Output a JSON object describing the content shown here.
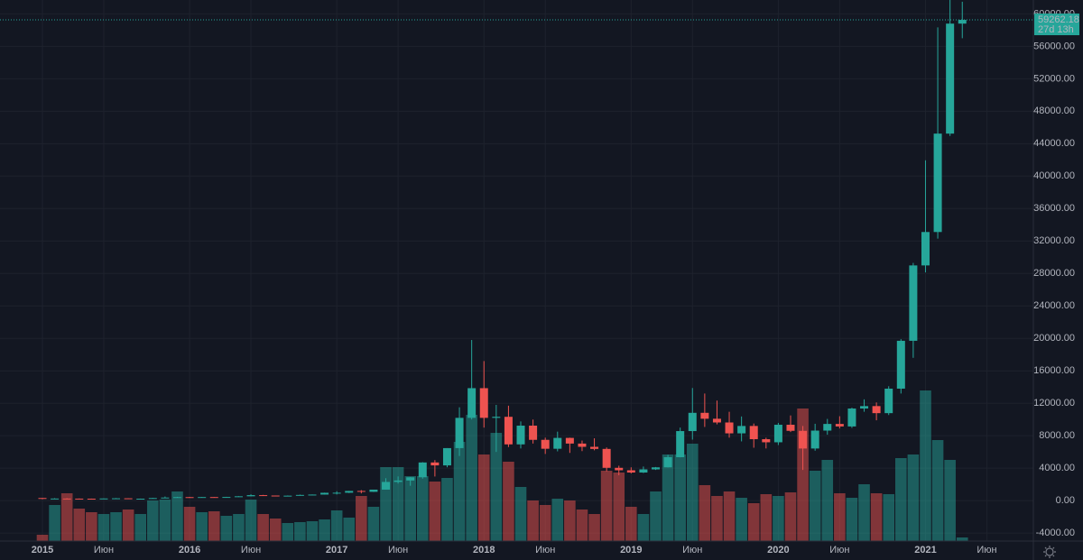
{
  "chart_data": {
    "type": "candlestick",
    "up_color": "#26a69a",
    "down_color": "#ef5350",
    "x": [
      "2015-01",
      "2015-02",
      "2015-03",
      "2015-04",
      "2015-05",
      "2015-06",
      "2015-07",
      "2015-08",
      "2015-09",
      "2015-10",
      "2015-11",
      "2015-12",
      "2016-01",
      "2016-02",
      "2016-03",
      "2016-04",
      "2016-05",
      "2016-06",
      "2016-07",
      "2016-08",
      "2016-09",
      "2016-10",
      "2016-11",
      "2016-12",
      "2017-01",
      "2017-02",
      "2017-03",
      "2017-04",
      "2017-05",
      "2017-06",
      "2017-07",
      "2017-08",
      "2017-09",
      "2017-10",
      "2017-11",
      "2017-12",
      "2018-01",
      "2018-02",
      "2018-03",
      "2018-04",
      "2018-05",
      "2018-06",
      "2018-07",
      "2018-08",
      "2018-09",
      "2018-10",
      "2018-11",
      "2018-12",
      "2019-01",
      "2019-02",
      "2019-03",
      "2019-04",
      "2019-05",
      "2019-06",
      "2019-07",
      "2019-08",
      "2019-09",
      "2019-10",
      "2019-11",
      "2019-12",
      "2020-01",
      "2020-02",
      "2020-03",
      "2020-04",
      "2020-05",
      "2020-06",
      "2020-07",
      "2020-08",
      "2020-09",
      "2020-10",
      "2020-11",
      "2020-12",
      "2021-01",
      "2021-02",
      "2021-03",
      "2021-04"
    ],
    "open": [
      320,
      217,
      254,
      244,
      236,
      230,
      263,
      284,
      230,
      236,
      314,
      377,
      430,
      368,
      437,
      416,
      448,
      531,
      673,
      624,
      575,
      609,
      700,
      743,
      963,
      970,
      1190,
      1080,
      1350,
      2300,
      2480,
      2875,
      4700,
      4340,
      6470,
      10200,
      13860,
      10200,
      10330,
      6930,
      9240,
      7490,
      6390,
      7730,
      7030,
      6630,
      6370,
      4040,
      3740,
      3460,
      3850,
      4100,
      5350,
      8570,
      10820,
      10090,
      9630,
      8290,
      9200,
      7570,
      7190,
      9350,
      8600,
      6420,
      8630,
      9450,
      9140,
      11350,
      11650,
      10780,
      13800,
      19700,
      28990,
      33110,
      45240,
      58800
    ],
    "high": [
      320,
      300,
      300,
      261,
      247,
      267,
      315,
      285,
      247,
      334,
      503,
      465,
      456,
      447,
      439,
      467,
      547,
      775,
      704,
      627,
      629,
      739,
      753,
      979,
      1155,
      1200,
      1290,
      1350,
      2760,
      2980,
      2900,
      4740,
      4990,
      6470,
      11500,
      19800,
      17200,
      11800,
      11700,
      9760,
      9990,
      7760,
      8500,
      7760,
      7400,
      7680,
      6550,
      4300,
      4100,
      4200,
      4140,
      5640,
      9000,
      13880,
      13200,
      12330,
      10950,
      10370,
      9500,
      7750,
      9580,
      10500,
      9200,
      9470,
      10070,
      10400,
      11450,
      12480,
      12100,
      14100,
      19900,
      29300,
      41950,
      58330,
      61800,
      61500
    ],
    "low": [
      170,
      212,
      236,
      214,
      225,
      220,
      253,
      199,
      225,
      236,
      311,
      350,
      350,
      366,
      395,
      415,
      444,
      527,
      605,
      540,
      570,
      604,
      683,
      742,
      755,
      932,
      890,
      1060,
      1350,
      2100,
      1830,
      2700,
      2970,
      4110,
      5500,
      10000,
      9000,
      6000,
      6600,
      6430,
      7030,
      5750,
      6070,
      5880,
      6100,
      6200,
      3600,
      3120,
      3350,
      3400,
      3780,
      4080,
      5330,
      7520,
      9080,
      9400,
      7760,
      7300,
      6520,
      6430,
      6850,
      8450,
      3780,
      6150,
      8120,
      8900,
      8960,
      10950,
      9900,
      10550,
      13200,
      17600,
      28130,
      32300,
      44950,
      57000
    ],
    "close": [
      217,
      254,
      244,
      236,
      230,
      263,
      284,
      230,
      236,
      314,
      377,
      430,
      368,
      437,
      416,
      448,
      531,
      673,
      624,
      575,
      609,
      700,
      743,
      963,
      970,
      1190,
      1080,
      1350,
      2300,
      2480,
      2875,
      4700,
      4340,
      6470,
      10200,
      13860,
      10200,
      10330,
      6930,
      9240,
      7490,
      6390,
      7730,
      7030,
      6630,
      6370,
      4040,
      3740,
      3460,
      3850,
      4100,
      5350,
      8570,
      10820,
      10090,
      9630,
      8290,
      9200,
      7570,
      7190,
      9350,
      8600,
      6420,
      8630,
      9450,
      9140,
      11350,
      11650,
      10780,
      13800,
      19700,
      28990,
      33110,
      45240,
      58800,
      59262.18
    ],
    "volume": [
      7,
      40,
      53,
      36,
      32,
      30,
      32,
      35,
      30,
      45,
      46,
      55,
      38,
      32,
      33,
      28,
      30,
      46,
      30,
      25,
      20,
      21,
      22,
      24,
      34,
      26,
      50,
      38,
      82,
      82,
      72,
      72,
      66,
      70,
      110,
      140,
      96,
      120,
      88,
      60,
      45,
      40,
      47,
      45,
      35,
      30,
      78,
      76,
      38,
      30,
      55,
      96,
      96,
      108,
      62,
      50,
      55,
      48,
      42,
      52,
      50,
      54,
      147,
      78,
      90,
      53,
      48,
      63,
      53,
      52,
      92,
      96,
      167,
      112,
      90,
      4
    ],
    "volume_lim": [
      0,
      600
    ],
    "ylim": [
      -6000,
      61200
    ],
    "yticks": [
      {
        "value": -4000,
        "label": "-4000.00"
      },
      {
        "value": 0,
        "label": "0.00"
      },
      {
        "value": 4000,
        "label": "4000.00"
      },
      {
        "value": 8000,
        "label": "8000.00"
      },
      {
        "value": 12000,
        "label": "12000.00"
      },
      {
        "value": 16000,
        "label": "16000.00"
      },
      {
        "value": 20000,
        "label": "20000.00"
      },
      {
        "value": 24000,
        "label": "24000.00"
      },
      {
        "value": 28000,
        "label": "28000.00"
      },
      {
        "value": 32000,
        "label": "32000.00"
      },
      {
        "value": 36000,
        "label": "36000.00"
      },
      {
        "value": 40000,
        "label": "40000.00"
      },
      {
        "value": 44000,
        "label": "44000.00"
      },
      {
        "value": 48000,
        "label": "48000.00"
      },
      {
        "value": 52000,
        "label": "52000.00"
      },
      {
        "value": 56000,
        "label": "56000.00"
      },
      {
        "value": 60000,
        "label": "60000.00"
      }
    ],
    "xticks": [
      {
        "value": "2015-01",
        "label": "2015"
      },
      {
        "value": "2015-06",
        "label": "Июн"
      },
      {
        "value": "2016-01",
        "label": "2016"
      },
      {
        "value": "2016-06",
        "label": "Июн"
      },
      {
        "value": "2017-01",
        "label": "2017"
      },
      {
        "value": "2017-06",
        "label": "Июн"
      },
      {
        "value": "2018-01",
        "label": "2018"
      },
      {
        "value": "2018-06",
        "label": "Июн"
      },
      {
        "value": "2019-01",
        "label": "2019"
      },
      {
        "value": "2019-06",
        "label": "Июн"
      },
      {
        "value": "2020-01",
        "label": "2020"
      },
      {
        "value": "2020-06",
        "label": "Июн"
      },
      {
        "value": "2021-01",
        "label": "2021"
      },
      {
        "value": "2021-06",
        "label": "Июн"
      }
    ],
    "countdown": "27d 13h",
    "grid": true
  }
}
